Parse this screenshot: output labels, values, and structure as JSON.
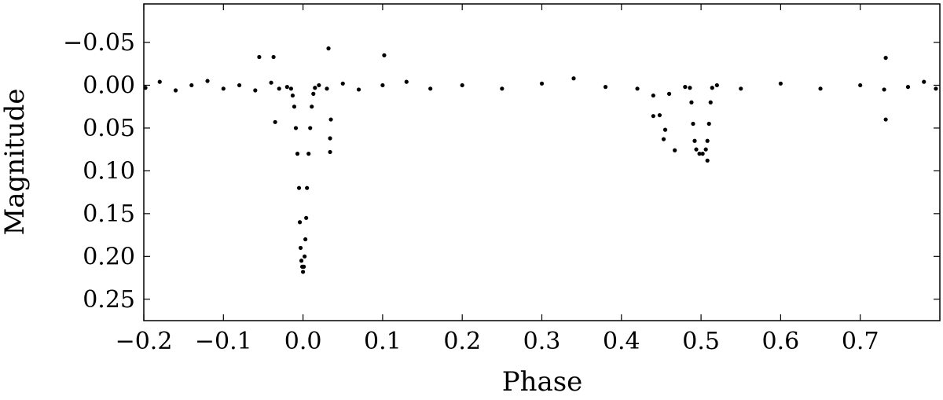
{
  "chart_data": {
    "type": "scatter",
    "xlabel": "Phase",
    "ylabel": "Magnitude",
    "xlim": [
      -0.2,
      0.8
    ],
    "ylim": [
      0.275,
      -0.095
    ],
    "y_inverted": true,
    "xticks": [
      -0.2,
      -0.1,
      0.0,
      0.1,
      0.2,
      0.3,
      0.4,
      0.5,
      0.6,
      0.7
    ],
    "xtick_labels": [
      "−0.2",
      "−0.1",
      "0.0",
      "0.1",
      "0.2",
      "0.3",
      "0.4",
      "0.5",
      "0.6",
      "0.7"
    ],
    "yticks": [
      -0.05,
      0.0,
      0.05,
      0.1,
      0.15,
      0.2,
      0.25
    ],
    "ytick_labels": [
      "−0.05",
      "0.00",
      "0.05",
      "0.10",
      "0.15",
      "0.20",
      "0.25"
    ],
    "grid": false,
    "marker_color": "#000000",
    "series": [
      {
        "values": [
          [
            -0.198,
            0.003
          ],
          [
            -0.18,
            -0.004
          ],
          [
            -0.16,
            0.006
          ],
          [
            -0.14,
            0.0
          ],
          [
            -0.12,
            -0.005
          ],
          [
            -0.1,
            0.004
          ],
          [
            -0.08,
            0.0
          ],
          [
            -0.06,
            0.006
          ],
          [
            -0.04,
            -0.003
          ],
          [
            -0.03,
            0.004
          ],
          [
            -0.02,
            0.002
          ],
          [
            -0.015,
            0.004
          ],
          [
            -0.013,
            0.012
          ],
          [
            -0.011,
            0.025
          ],
          [
            -0.009,
            0.05
          ],
          [
            -0.007,
            0.08
          ],
          [
            -0.005,
            0.12
          ],
          [
            -0.004,
            0.16
          ],
          [
            -0.003,
            0.19
          ],
          [
            -0.002,
            0.205
          ],
          [
            -0.001,
            0.212
          ],
          [
            0.0,
            0.218
          ],
          [
            0.001,
            0.212
          ],
          [
            0.002,
            0.2
          ],
          [
            0.003,
            0.18
          ],
          [
            0.004,
            0.155
          ],
          [
            0.005,
            0.12
          ],
          [
            0.007,
            0.08
          ],
          [
            0.009,
            0.05
          ],
          [
            0.011,
            0.025
          ],
          [
            0.013,
            0.01
          ],
          [
            0.015,
            0.003
          ],
          [
            0.02,
            0.0
          ],
          [
            0.03,
            0.004
          ],
          [
            0.05,
            -0.002
          ],
          [
            0.07,
            0.005
          ],
          [
            0.1,
            0.0
          ],
          [
            0.13,
            -0.004
          ],
          [
            0.16,
            0.004
          ],
          [
            0.2,
            0.0
          ],
          [
            0.25,
            0.004
          ],
          [
            0.3,
            -0.002
          ],
          [
            0.34,
            -0.008
          ],
          [
            0.38,
            0.002
          ],
          [
            0.42,
            0.004
          ],
          [
            0.44,
            0.012
          ],
          [
            0.46,
            0.01
          ],
          [
            0.48,
            0.002
          ],
          [
            0.486,
            0.003
          ],
          [
            0.488,
            0.02
          ],
          [
            0.49,
            0.045
          ],
          [
            0.492,
            0.065
          ],
          [
            0.494,
            0.075
          ],
          [
            0.498,
            0.08
          ],
          [
            0.502,
            0.08
          ],
          [
            0.506,
            0.075
          ],
          [
            0.508,
            0.065
          ],
          [
            0.51,
            0.045
          ],
          [
            0.512,
            0.02
          ],
          [
            0.514,
            0.003
          ],
          [
            0.52,
            0.0
          ],
          [
            0.55,
            0.004
          ],
          [
            0.6,
            -0.002
          ],
          [
            0.65,
            0.004
          ],
          [
            0.7,
            0.0
          ],
          [
            0.73,
            0.005
          ],
          [
            0.76,
            0.002
          ],
          [
            0.78,
            -0.004
          ],
          [
            0.795,
            0.004
          ],
          [
            -0.055,
            -0.033
          ],
          [
            -0.037,
            -0.033
          ],
          [
            -0.035,
            0.043
          ],
          [
            0.032,
            -0.043
          ],
          [
            0.034,
            0.078
          ],
          [
            0.034,
            0.062
          ],
          [
            0.035,
            0.04
          ],
          [
            0.102,
            -0.035
          ],
          [
            0.44,
            0.036
          ],
          [
            0.448,
            0.035
          ],
          [
            0.453,
            0.063
          ],
          [
            0.455,
            0.052
          ],
          [
            0.467,
            0.076
          ],
          [
            0.732,
            -0.032
          ],
          [
            0.732,
            0.04
          ],
          [
            0.508,
            0.088
          ]
        ]
      }
    ]
  }
}
